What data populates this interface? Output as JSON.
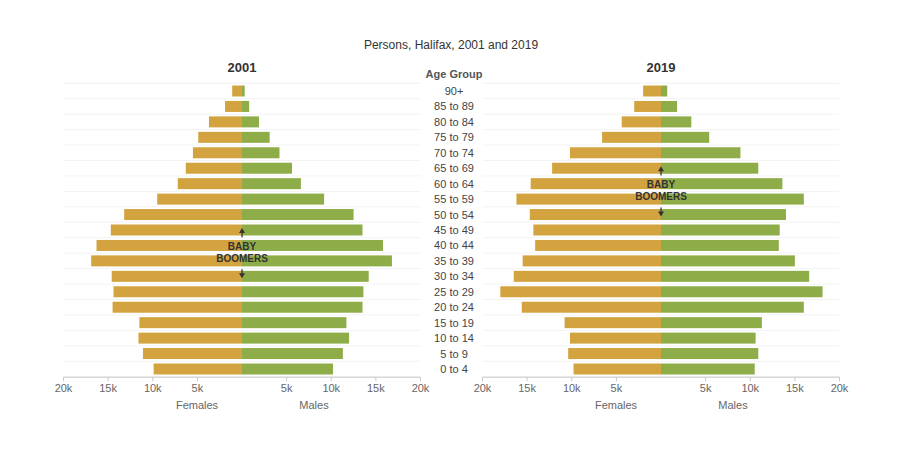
{
  "chart_data": {
    "type": "bar",
    "orientation": "horizontal",
    "title": "Persons, Halifax, 2001 and 2019",
    "y_label": "Age Group",
    "categories": [
      "90+",
      "85 to 89",
      "80 to 84",
      "75 to 79",
      "70 to 74",
      "65 to 69",
      "60 to 64",
      "55 to 59",
      "50 to 54",
      "45 to 49",
      "40 to 44",
      "35 to 39",
      "30 to 34",
      "25 to 29",
      "20 to 24",
      "15 to 19",
      "10 to 14",
      "5 to 9",
      "0 to 4"
    ],
    "xlim": [
      0,
      20000
    ],
    "xticks": [
      {
        "value": 5000,
        "label": "5k"
      },
      {
        "value": 10000,
        "label": "10k"
      },
      {
        "value": 15000,
        "label": "15k"
      },
      {
        "value": 20000,
        "label": "20k"
      }
    ],
    "grid": true,
    "panels": [
      {
        "title": "2001",
        "annotation": {
          "text": "BABY BOOMERS",
          "categories": [
            "45 to 49",
            "30 to 34"
          ]
        },
        "series": [
          {
            "name": "Females",
            "color": "#d3a33f",
            "values": [
              1100,
              1900,
              3700,
              4900,
              5500,
              6300,
              7200,
              9500,
              13200,
              14700,
              16300,
              16900,
              14600,
              14400,
              14500,
              11500,
              11600,
              11100,
              9900
            ]
          },
          {
            "name": "Males",
            "color": "#8ead48",
            "values": [
              300,
              800,
              1900,
              3100,
              4200,
              5600,
              6600,
              9200,
              12500,
              13500,
              15800,
              16800,
              14200,
              13600,
              13500,
              11700,
              12000,
              11300,
              10200
            ]
          }
        ]
      },
      {
        "title": "2019",
        "annotation": {
          "text": "BABY BOOMERS",
          "categories": [
            "65 to 69",
            "50 to 54"
          ]
        },
        "series": [
          {
            "name": "Females",
            "color": "#d3a33f",
            "values": [
              2000,
              3000,
              4400,
              6600,
              10200,
              12200,
              14600,
              16200,
              14700,
              14300,
              14100,
              15500,
              16500,
              18000,
              15600,
              10800,
              10200,
              10400,
              9800
            ]
          },
          {
            "name": "Males",
            "color": "#8ead48",
            "values": [
              700,
              1800,
              3400,
              5400,
              8900,
              10900,
              13600,
              16000,
              14000,
              13300,
              13200,
              15000,
              16600,
              18100,
              16000,
              11300,
              10600,
              10900,
              10500
            ]
          }
        ]
      }
    ]
  }
}
